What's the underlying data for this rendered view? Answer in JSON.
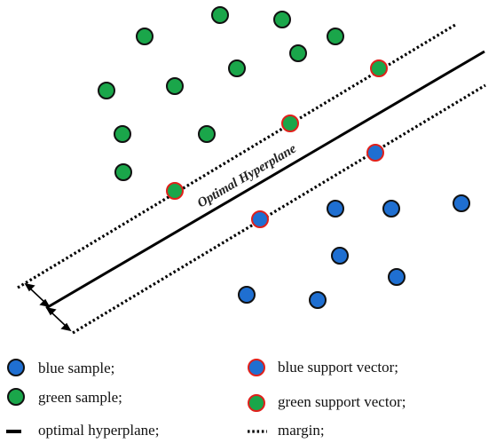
{
  "diagram": {
    "hyperplane_label": "Optimal Hyperplane",
    "colors": {
      "blue": "#1f6fd1",
      "green": "#1aa64a",
      "outline": "#111111",
      "support_outline": "#e0201b",
      "line": "#000000"
    }
  },
  "legend": {
    "blue_sample": "blue sample;",
    "green_sample": "green sample;",
    "optimal_hyperplane": "optimal hyperplane;",
    "blue_support_vector": "blue support vector;",
    "green_support_vector": "green support vector;",
    "margin": "margin;"
  }
}
